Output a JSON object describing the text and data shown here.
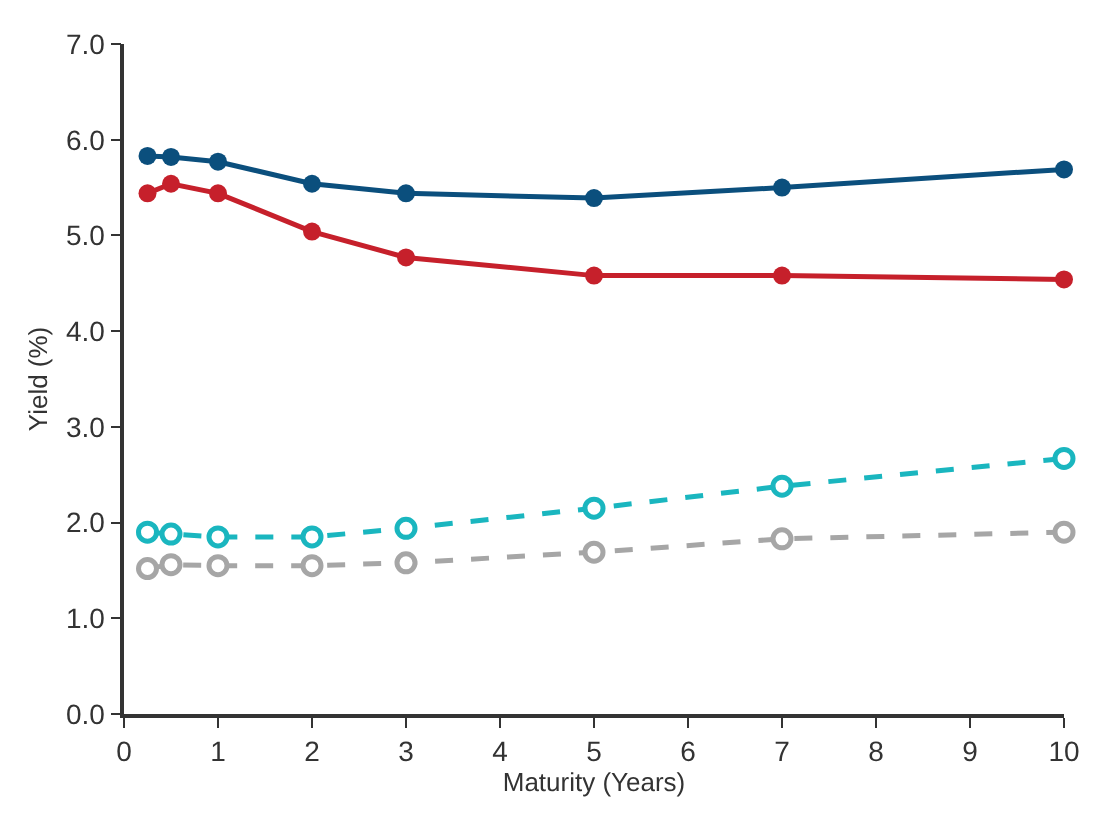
{
  "chart_data": {
    "type": "line",
    "xlabel": "Maturity (Years)",
    "ylabel": "Yield (%)",
    "x": [
      0.25,
      0.5,
      1,
      2,
      3,
      5,
      7,
      10
    ],
    "xlim": [
      0,
      10
    ],
    "xticks": [
      0,
      1,
      2,
      3,
      4,
      5,
      6,
      7,
      8,
      9,
      10
    ],
    "ylim": [
      0,
      7
    ],
    "yticks": [
      {
        "value": 0,
        "label": "0.0"
      },
      {
        "value": 1,
        "label": "1.0"
      },
      {
        "value": 2,
        "label": "2.0"
      },
      {
        "value": 3,
        "label": "3.0"
      },
      {
        "value": 4,
        "label": "4.0"
      },
      {
        "value": 5,
        "label": "5.0"
      },
      {
        "value": 6,
        "label": "6.0"
      },
      {
        "value": 7,
        "label": "7.0"
      }
    ],
    "marker": "circle",
    "series": [
      {
        "color": "#0b4f7d",
        "line_style": "solid",
        "values": [
          5.83,
          5.82,
          5.77,
          5.54,
          5.44,
          5.39,
          5.5,
          5.69
        ]
      },
      {
        "color": "#c6202b",
        "line_style": "solid",
        "values": [
          5.44,
          5.54,
          5.44,
          5.04,
          4.77,
          4.58,
          4.58,
          4.54
        ]
      },
      {
        "color": "#1ab6bf",
        "line_style": "dashed",
        "values": [
          1.9,
          1.88,
          1.85,
          1.85,
          1.94,
          2.15,
          2.38,
          2.67
        ]
      },
      {
        "color": "#a6a6a6",
        "line_style": "dashed",
        "values": [
          1.52,
          1.56,
          1.55,
          1.55,
          1.58,
          1.69,
          1.83,
          1.9
        ]
      }
    ]
  }
}
